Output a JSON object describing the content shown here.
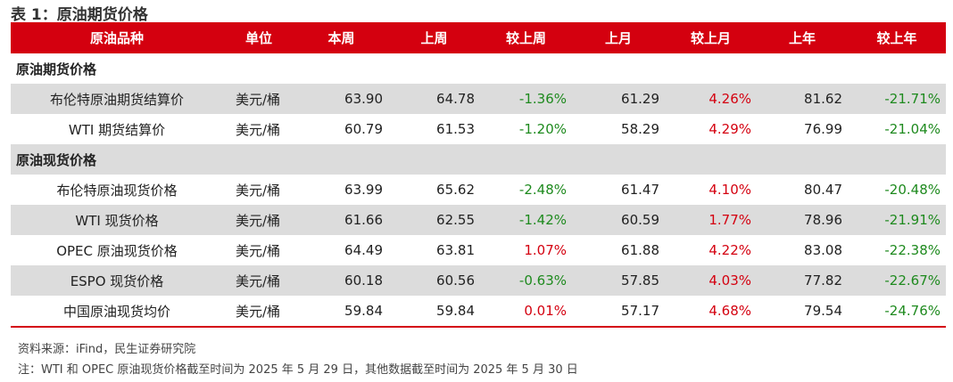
{
  "title": "表 1：原油期货价格",
  "header": [
    "原油品种",
    "单位",
    "本周",
    "上周",
    "较上周",
    "上月",
    "较上月",
    "上年",
    "较上年"
  ],
  "sections": [
    {
      "label": "原油期货价格",
      "rows": [
        [
          "布伦特原油期货结算价",
          "美元/桶",
          "63.90",
          "64.78",
          "-1.36%",
          "61.29",
          "4.26%",
          "81.62",
          "-21.71%"
        ],
        [
          "WTI 期货结算价",
          "美元/桶",
          "60.79",
          "61.53",
          "-1.20%",
          "58.29",
          "4.29%",
          "76.99",
          "-21.04%"
        ]
      ]
    },
    {
      "label": "原油现货价格",
      "rows": [
        [
          "布伦特原油现货价格",
          "美元/桶",
          "63.99",
          "65.62",
          "-2.48%",
          "61.47",
          "4.10%",
          "80.47",
          "-20.48%"
        ],
        [
          "WTI 现货价格",
          "美元/桶",
          "61.66",
          "62.55",
          "-1.42%",
          "60.59",
          "1.77%",
          "78.96",
          "-21.91%"
        ],
        [
          "OPEC 原油现货价格",
          "美元/桶",
          "64.49",
          "63.81",
          "1.07%",
          "61.88",
          "4.22%",
          "83.08",
          "-22.38%"
        ],
        [
          "ESPO 现货价格",
          "美元/桶",
          "60.18",
          "60.56",
          "-0.63%",
          "57.85",
          "4.03%",
          "77.82",
          "-22.67%"
        ],
        [
          "中国原油现货均价",
          "美元/桶",
          "59.84",
          "59.84",
          "0.01%",
          "57.17",
          "4.68%",
          "79.54",
          "-24.76%"
        ]
      ]
    }
  ],
  "source": "资料来源：iFind，民生证券研究院",
  "note": "注：WTI 和 OPEC 原油现货价格截至时间为 2025 年 5 月 29 日，其他数据截至时间为 2025 年 5 月 30 日"
}
